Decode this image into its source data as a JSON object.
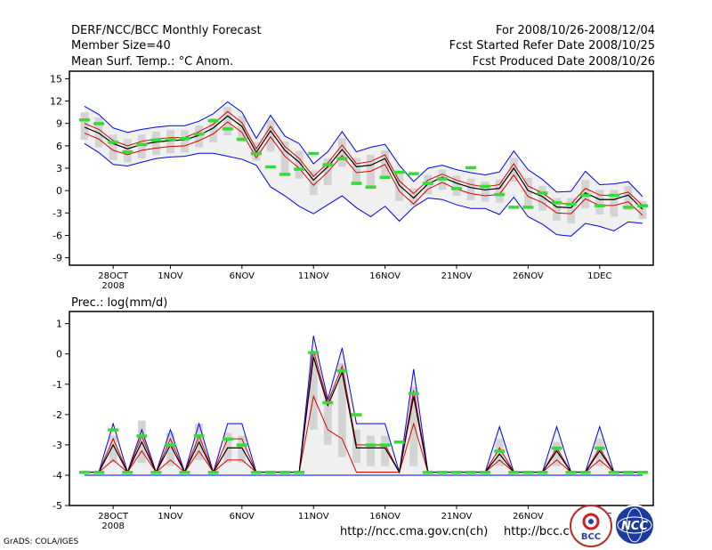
{
  "header": {
    "title": "DERF/NCC/BCC Monthly Forecast",
    "member_size": "Member Size=40",
    "variable": "Mean Surf. Temp.: °C Anom.",
    "period": "For 2008/10/26-2008/12/04",
    "started": "Fcst Started Refer Date 2008/10/25",
    "produced": "Fcst Produced Date 2008/10/26"
  },
  "footer": {
    "url1": "http://ncc.cma.gov.cn(ch)",
    "url2": "http://bcc.c",
    "grads": "GrADS: COLA/IGES",
    "logo1": "BCC",
    "logo2": "NCC"
  },
  "colors": {
    "envelope": "#0000ee",
    "mean": "#000000",
    "spread": "#dd0000",
    "obs": "#33dd33",
    "box": "#d3d3d3"
  },
  "chart_data": [
    {
      "type": "line",
      "title": "Mean Surf. Temp.: °C Anom.",
      "x_tick_labels": [
        "28OCT",
        "1NOV",
        "6NOV",
        "11NOV",
        "16NOV",
        "21NOV",
        "26NOV",
        "1DEC"
      ],
      "x_tick_day_index": [
        2,
        6,
        11,
        16,
        21,
        26,
        31,
        36
      ],
      "year_label": "2008",
      "ylim": [
        -10,
        16
      ],
      "y_ticks": [
        -9,
        -6,
        -3,
        0,
        3,
        6,
        9,
        12,
        15
      ],
      "n_days": 40,
      "series": [
        {
          "name": "max",
          "values": [
            11.3,
            10.2,
            8.4,
            7.8,
            8.2,
            8.5,
            8.7,
            8.7,
            9.3,
            10.3,
            11.9,
            10.5,
            7.0,
            10.1,
            7.3,
            6.3,
            3.6,
            5.2,
            7.9,
            5.2,
            5.8,
            6.2,
            3.4,
            1.2,
            3.0,
            3.4,
            2.8,
            2.4,
            2.1,
            2.5,
            5.3,
            2.8,
            1.5,
            -0.2,
            -0.1,
            2.6,
            0.8,
            0.9,
            1.2,
            -0.8
          ]
        },
        {
          "name": "upper",
          "values": [
            9.0,
            8.2,
            6.7,
            6.0,
            6.6,
            6.9,
            7.1,
            7.1,
            7.9,
            8.9,
            10.6,
            9.1,
            5.6,
            8.6,
            5.9,
            4.3,
            1.9,
            3.7,
            6.1,
            3.6,
            3.9,
            4.8,
            1.3,
            -0.4,
            1.4,
            2.2,
            1.4,
            0.8,
            0.5,
            0.8,
            3.6,
            0.6,
            -0.3,
            -1.7,
            -1.8,
            0.3,
            -0.6,
            -0.7,
            -0.2,
            -2.0
          ]
        },
        {
          "name": "mean",
          "values": [
            8.5,
            7.7,
            6.3,
            5.6,
            6.2,
            6.5,
            6.7,
            6.8,
            7.4,
            8.4,
            10.0,
            8.6,
            5.1,
            8.0,
            5.4,
            3.8,
            1.4,
            3.2,
            5.5,
            3.2,
            3.4,
            4.3,
            0.7,
            -1.0,
            0.9,
            1.8,
            1.0,
            0.4,
            0.1,
            0.3,
            3.0,
            0.0,
            -0.8,
            -2.2,
            -2.3,
            -0.3,
            -1.2,
            -1.2,
            -0.6,
            -2.5
          ]
        },
        {
          "name": "lower",
          "values": [
            7.7,
            6.9,
            5.4,
            4.8,
            5.4,
            5.7,
            5.9,
            6.0,
            6.7,
            7.6,
            9.2,
            7.8,
            4.4,
            7.2,
            4.6,
            3.0,
            0.7,
            2.5,
            4.7,
            2.4,
            2.6,
            3.5,
            -0.1,
            -1.8,
            0.2,
            1.1,
            0.2,
            -0.4,
            -0.7,
            -0.5,
            2.1,
            -0.8,
            -1.6,
            -3.0,
            -3.1,
            -1.1,
            -2.0,
            -2.0,
            -1.5,
            -3.3
          ]
        },
        {
          "name": "min",
          "values": [
            6.3,
            5.1,
            3.5,
            3.3,
            3.8,
            4.3,
            4.5,
            4.6,
            5.0,
            5.0,
            4.6,
            4.2,
            3.4,
            0.5,
            -0.7,
            -2.1,
            -3.1,
            -1.9,
            -0.7,
            -2.3,
            -3.5,
            -2.1,
            -4.1,
            -2.2,
            -1.0,
            -1.2,
            -1.9,
            -2.4,
            -2.4,
            -3.2,
            -0.9,
            -3.5,
            -4.5,
            -5.9,
            -6.1,
            -4.4,
            -4.8,
            -5.4,
            -4.2,
            -4.4
          ]
        },
        {
          "name": "box_top",
          "values": [
            10.5,
            9.8,
            7.5,
            6.9,
            7.5,
            7.9,
            8.1,
            8.1,
            8.7,
            9.7,
            11.2,
            10.0,
            6.5,
            9.4,
            6.6,
            5.3,
            2.7,
            4.3,
            7.0,
            4.4,
            4.8,
            5.4,
            2.4,
            0.3,
            2.1,
            2.8,
            2.0,
            1.6,
            1.2,
            1.5,
            4.4,
            1.7,
            0.6,
            -1.0,
            -1.0,
            1.4,
            0.1,
            0.1,
            0.6,
            -1.4
          ]
        },
        {
          "name": "box_bottom",
          "values": [
            6.8,
            5.8,
            4.1,
            3.8,
            4.3,
            4.8,
            5.0,
            5.1,
            5.8,
            6.5,
            7.4,
            6.6,
            4.0,
            5.2,
            2.4,
            1.6,
            -0.6,
            0.7,
            3.2,
            0.7,
            0.2,
            1.8,
            -1.4,
            -2.0,
            -0.5,
            0.1,
            -0.7,
            -1.3,
            -1.5,
            -1.6,
            1.2,
            -2.1,
            -2.7,
            -4.0,
            -4.4,
            -2.4,
            -3.2,
            -3.5,
            -2.6,
            -3.8
          ]
        },
        {
          "name": "obs",
          "values": [
            9.5,
            9.0,
            6.5,
            5.2,
            6.2,
            6.8,
            6.9,
            7.0,
            7.6,
            9.4,
            8.3,
            6.9,
            5.0,
            3.2,
            2.2,
            2.9,
            5.0,
            3.5,
            4.3,
            1.0,
            0.5,
            1.8,
            2.5,
            2.3,
            1.0,
            1.6,
            0.3,
            3.1,
            0.6,
            -0.5,
            -2.2,
            -2.2,
            -0.3,
            -1.6,
            -1.8,
            -0.6,
            -2.0,
            -0.6,
            -2.2,
            -2.0
          ]
        }
      ]
    },
    {
      "type": "line",
      "title": "Prec.: log(mm/d)",
      "x_tick_labels": [
        "28OCT",
        "1NOV",
        "6NOV",
        "11NOV",
        "16NOV",
        "21NOV",
        "26NOV",
        "1DEC"
      ],
      "x_tick_day_index": [
        2,
        6,
        11,
        16,
        21,
        26,
        31,
        36
      ],
      "year_label": "2008",
      "ylim": [
        -5,
        1.4
      ],
      "y_ticks": [
        -5,
        -4,
        -3,
        -2,
        -1,
        0,
        1
      ],
      "n_days": 40,
      "series": [
        {
          "name": "max",
          "values": [
            -3.9,
            -3.9,
            -2.3,
            -3.9,
            -2.5,
            -3.9,
            -2.5,
            -3.9,
            -2.3,
            -3.9,
            -2.3,
            -2.3,
            -3.9,
            -3.9,
            -3.9,
            -3.9,
            0.6,
            -1.5,
            0.2,
            -2.3,
            -2.3,
            -2.3,
            -3.9,
            -0.5,
            -3.9,
            -3.9,
            -3.9,
            -3.9,
            -3.9,
            -2.4,
            -3.9,
            -3.9,
            -3.9,
            -2.4,
            -3.9,
            -3.9,
            -2.4,
            -3.9,
            -3.9,
            -3.9
          ]
        },
        {
          "name": "upper",
          "values": [
            -3.9,
            -3.9,
            -2.8,
            -3.9,
            -2.7,
            -3.9,
            -2.8,
            -3.9,
            -2.7,
            -3.9,
            -2.8,
            -2.8,
            -3.9,
            -3.9,
            -3.9,
            -3.9,
            0.1,
            -1.6,
            -0.4,
            -3.0,
            -3.0,
            -3.0,
            -3.9,
            -1.2,
            -3.9,
            -3.9,
            -3.9,
            -3.9,
            -3.9,
            -3.1,
            -3.9,
            -3.9,
            -3.9,
            -3.1,
            -3.9,
            -3.9,
            -3.1,
            -3.9,
            -3.9,
            -3.9
          ]
        },
        {
          "name": "mean",
          "values": [
            -3.9,
            -3.9,
            -3.0,
            -3.9,
            -2.9,
            -3.9,
            -3.0,
            -3.9,
            -2.9,
            -3.9,
            -3.1,
            -3.1,
            -3.9,
            -3.9,
            -3.9,
            -3.9,
            -0.1,
            -1.7,
            -0.6,
            -3.1,
            -3.1,
            -3.1,
            -3.9,
            -1.4,
            -3.9,
            -3.9,
            -3.9,
            -3.9,
            -3.9,
            -3.3,
            -3.9,
            -3.9,
            -3.9,
            -3.2,
            -3.9,
            -3.9,
            -3.2,
            -3.9,
            -3.9,
            -3.9
          ]
        },
        {
          "name": "lower",
          "values": [
            -3.9,
            -3.9,
            -3.5,
            -3.9,
            -3.2,
            -3.9,
            -3.5,
            -3.9,
            -3.2,
            -3.9,
            -3.5,
            -3.5,
            -3.9,
            -3.9,
            -3.9,
            -3.9,
            -1.4,
            -2.5,
            -2.8,
            -3.9,
            -3.9,
            -3.9,
            -3.9,
            -2.3,
            -3.9,
            -3.9,
            -3.9,
            -3.9,
            -3.9,
            -3.5,
            -3.9,
            -3.9,
            -3.9,
            -3.5,
            -3.9,
            -3.9,
            -3.5,
            -3.9,
            -3.9,
            -3.9
          ]
        },
        {
          "name": "min",
          "values": [
            -4.0,
            -4.0,
            -4.0,
            -4.0,
            -4.0,
            -4.0,
            -4.0,
            -4.0,
            -4.0,
            -4.0,
            -4.0,
            -4.0,
            -4.0,
            -4.0,
            -4.0,
            -4.0,
            -4.0,
            -4.0,
            -4.0,
            -4.0,
            -4.0,
            -4.0,
            -4.0,
            -4.0,
            -4.0,
            -4.0,
            -4.0,
            -4.0,
            -4.0,
            -4.0,
            -4.0,
            -4.0,
            -4.0,
            -4.0,
            -4.0,
            -4.0,
            -4.0,
            -4.0,
            -4.0,
            -4.0
          ]
        },
        {
          "name": "box_top",
          "values": [
            null,
            null,
            -2.7,
            null,
            -2.2,
            null,
            -2.6,
            null,
            -2.3,
            null,
            -2.6,
            -2.7,
            null,
            null,
            null,
            null,
            0.0,
            -1.5,
            -0.3,
            -2.5,
            -2.7,
            -2.7,
            null,
            -1.1,
            null,
            null,
            null,
            null,
            null,
            -2.8,
            null,
            null,
            null,
            -2.9,
            null,
            null,
            -2.8,
            null,
            null,
            null
          ]
        },
        {
          "name": "box_bottom",
          "values": [
            null,
            null,
            -3.6,
            null,
            -3.6,
            null,
            -3.7,
            null,
            -3.5,
            null,
            -3.6,
            -3.6,
            null,
            null,
            null,
            null,
            -2.5,
            -3.0,
            -3.4,
            -3.6,
            -3.7,
            -3.7,
            null,
            -3.7,
            null,
            null,
            null,
            null,
            null,
            -3.7,
            null,
            null,
            null,
            -3.7,
            null,
            null,
            -3.7,
            null,
            null,
            null
          ]
        },
        {
          "name": "obs",
          "values": [
            -3.9,
            -3.9,
            -2.5,
            -3.9,
            -2.7,
            -3.9,
            -3.0,
            -3.9,
            -2.7,
            -3.9,
            -2.8,
            -3.0,
            -3.9,
            -3.9,
            -3.9,
            -3.9,
            0.05,
            -1.6,
            -0.55,
            -2.0,
            -3.0,
            -3.0,
            -2.9,
            -1.3,
            -3.9,
            -3.9,
            -3.9,
            -3.9,
            -3.9,
            -3.2,
            -3.9,
            -3.9,
            -3.9,
            -3.1,
            -3.9,
            -3.9,
            -3.1,
            -3.9,
            -3.9,
            -3.9
          ]
        }
      ]
    }
  ]
}
